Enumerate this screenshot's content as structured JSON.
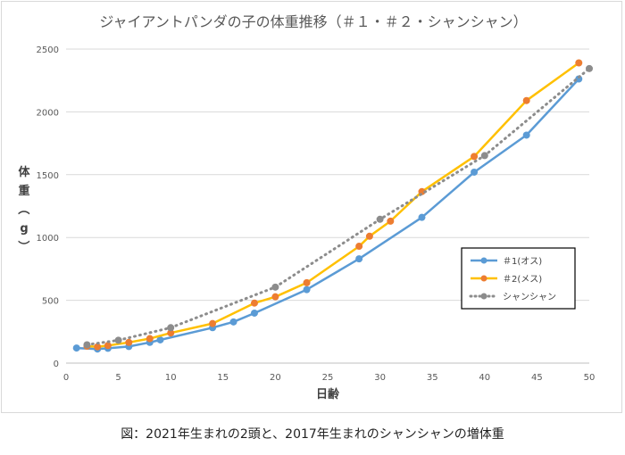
{
  "chart_data": {
    "type": "line",
    "title": "ジャイアントパンダの子の体重推移（＃１・＃２・シャンシャン）",
    "xlabel": "日齢",
    "ylabel": "体重（g）",
    "xlim": [
      0,
      50
    ],
    "ylim": [
      0,
      2500
    ],
    "x_ticks": [
      "0",
      "5",
      "10",
      "15",
      "20",
      "25",
      "30",
      "35",
      "40",
      "45",
      "50"
    ],
    "y_ticks": [
      "0",
      "500",
      "1000",
      "1500",
      "2000",
      "2500"
    ],
    "grid": true,
    "legend_position": "right",
    "series": [
      {
        "name": "＃1(オス)",
        "color": "#5b9bd5",
        "style": "solid",
        "points": [
          [
            1,
            120
          ],
          [
            3,
            112
          ],
          [
            4,
            118
          ],
          [
            6,
            132
          ],
          [
            8,
            165
          ],
          [
            9,
            185
          ],
          [
            14,
            282
          ],
          [
            16,
            328
          ],
          [
            18,
            398
          ],
          [
            23,
            585
          ],
          [
            28,
            830
          ],
          [
            34,
            1160
          ],
          [
            39,
            1520
          ],
          [
            44,
            1815
          ],
          [
            49,
            2262
          ]
        ]
      },
      {
        "name": "＃2(メス)",
        "color": "#ffc000",
        "marker_color": "#ed7d31",
        "style": "solid",
        "points": [
          [
            2,
            135
          ],
          [
            3,
            130
          ],
          [
            4,
            140
          ],
          [
            6,
            165
          ],
          [
            8,
            195
          ],
          [
            10,
            240
          ],
          [
            14,
            315
          ],
          [
            18,
            478
          ],
          [
            20,
            528
          ],
          [
            23,
            640
          ],
          [
            28,
            930
          ],
          [
            29,
            1010
          ],
          [
            31,
            1130
          ],
          [
            34,
            1365
          ],
          [
            39,
            1645
          ],
          [
            44,
            2090
          ],
          [
            49,
            2390
          ]
        ]
      },
      {
        "name": "シャンシャン",
        "color": "#8c8c8c",
        "style": "dotted",
        "points": [
          [
            2,
            146
          ],
          [
            5,
            182
          ],
          [
            10,
            282
          ],
          [
            20,
            605
          ],
          [
            30,
            1145
          ],
          [
            40,
            1652
          ],
          [
            50,
            2345
          ]
        ]
      }
    ]
  },
  "caption": "図：2021年生まれの2頭と、2017年生まれのシャンシャンの増体重"
}
